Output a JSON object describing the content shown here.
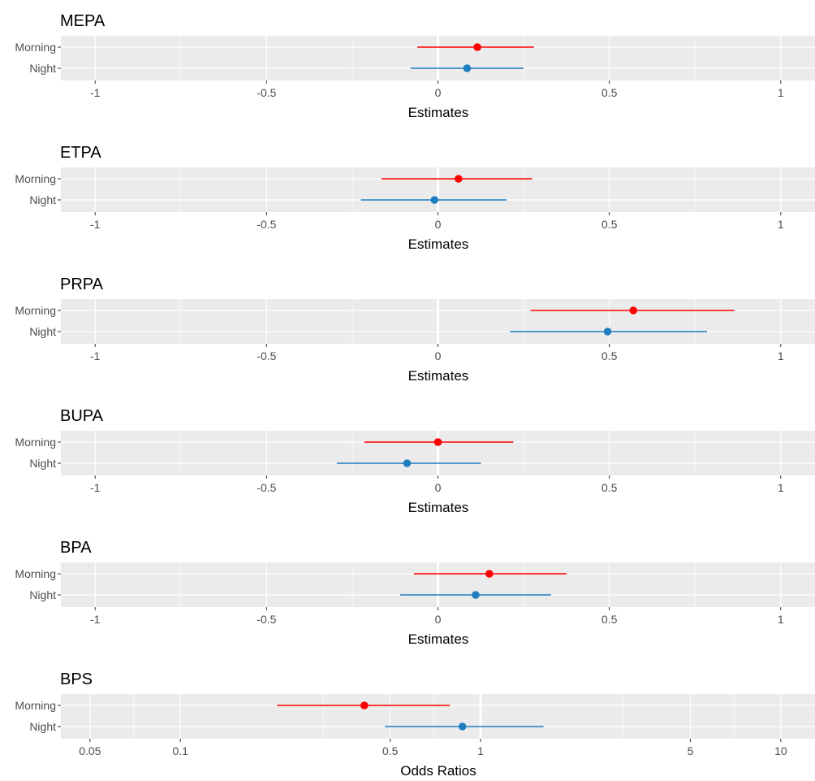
{
  "colors": {
    "morning": "#ff0000",
    "night": "#1f7ec0",
    "panel_bg": "#ebebeb",
    "grid": "#ffffff",
    "tick_text": "#4d4d4d",
    "text": "#000000"
  },
  "chart_data": [
    {
      "type": "forest",
      "title": "MEPA",
      "xlabel": "Estimates",
      "xscale": "linear",
      "xlim": [
        -1.1,
        1.1
      ],
      "xticks": [
        -1,
        -0.5,
        0,
        0.5,
        1
      ],
      "xtick_labels": [
        "-1",
        "-0.5",
        "0",
        "0.5",
        "1"
      ],
      "reference_line": 0,
      "categories": [
        "Morning",
        "Night"
      ],
      "series": [
        {
          "category": "Morning",
          "estimate": 0.115,
          "lower": -0.06,
          "upper": 0.28,
          "color": "#ff0000"
        },
        {
          "category": "Night",
          "estimate": 0.085,
          "lower": -0.08,
          "upper": 0.25,
          "color": "#1f7ec0"
        }
      ]
    },
    {
      "type": "forest",
      "title": "ETPA",
      "xlabel": "Estimates",
      "xscale": "linear",
      "xlim": [
        -1.1,
        1.1
      ],
      "xticks": [
        -1,
        -0.5,
        0,
        0.5,
        1
      ],
      "xtick_labels": [
        "-1",
        "-0.5",
        "0",
        "0.5",
        "1"
      ],
      "reference_line": 0,
      "categories": [
        "Morning",
        "Night"
      ],
      "series": [
        {
          "category": "Morning",
          "estimate": 0.06,
          "lower": -0.165,
          "upper": 0.275,
          "color": "#ff0000"
        },
        {
          "category": "Night",
          "estimate": -0.01,
          "lower": -0.225,
          "upper": 0.2,
          "color": "#1f7ec0"
        }
      ]
    },
    {
      "type": "forest",
      "title": "PRPA",
      "xlabel": "Estimates",
      "xscale": "linear",
      "xlim": [
        -1.1,
        1.1
      ],
      "xticks": [
        -1,
        -0.5,
        0,
        0.5,
        1
      ],
      "xtick_labels": [
        "-1",
        "-0.5",
        "0",
        "0.5",
        "1"
      ],
      "reference_line": 0,
      "categories": [
        "Morning",
        "Night"
      ],
      "series": [
        {
          "category": "Morning",
          "estimate": 0.57,
          "lower": 0.27,
          "upper": 0.865,
          "color": "#ff0000"
        },
        {
          "category": "Night",
          "estimate": 0.495,
          "lower": 0.21,
          "upper": 0.785,
          "color": "#1f7ec0"
        }
      ]
    },
    {
      "type": "forest",
      "title": "BUPA",
      "xlabel": "Estimates",
      "xscale": "linear",
      "xlim": [
        -1.1,
        1.1
      ],
      "xticks": [
        -1,
        -0.5,
        0,
        0.5,
        1
      ],
      "xtick_labels": [
        "-1",
        "-0.5",
        "0",
        "0.5",
        "1"
      ],
      "reference_line": 0,
      "categories": [
        "Morning",
        "Night"
      ],
      "series": [
        {
          "category": "Morning",
          "estimate": 0.0,
          "lower": -0.215,
          "upper": 0.22,
          "color": "#ff0000"
        },
        {
          "category": "Night",
          "estimate": -0.09,
          "lower": -0.295,
          "upper": 0.125,
          "color": "#1f7ec0"
        }
      ]
    },
    {
      "type": "forest",
      "title": "BPA",
      "xlabel": "Estimates",
      "xscale": "linear",
      "xlim": [
        -1.1,
        1.1
      ],
      "xticks": [
        -1,
        -0.5,
        0,
        0.5,
        1
      ],
      "xtick_labels": [
        "-1",
        "-0.5",
        "0",
        "0.5",
        "1"
      ],
      "reference_line": 0,
      "categories": [
        "Morning",
        "Night"
      ],
      "series": [
        {
          "category": "Morning",
          "estimate": 0.15,
          "lower": -0.07,
          "upper": 0.375,
          "color": "#ff0000"
        },
        {
          "category": "Night",
          "estimate": 0.11,
          "lower": -0.11,
          "upper": 0.33,
          "color": "#1f7ec0"
        }
      ]
    },
    {
      "type": "forest",
      "title": "BPS",
      "xlabel": "Odds Ratios",
      "xscale": "log",
      "xlim": [
        0.04,
        13
      ],
      "xticks": [
        0.05,
        0.1,
        0.5,
        1,
        5,
        10
      ],
      "xtick_labels": [
        "0.05",
        "0.1",
        "0.5",
        "1",
        "5",
        "10"
      ],
      "minor_gridlines": [
        0.07,
        0.3,
        0.7,
        3,
        7
      ],
      "reference_line": 1,
      "categories": [
        "Morning",
        "Night"
      ],
      "series": [
        {
          "category": "Morning",
          "estimate": 0.41,
          "lower": 0.21,
          "upper": 0.79,
          "color": "#ff0000"
        },
        {
          "category": "Night",
          "estimate": 0.87,
          "lower": 0.48,
          "upper": 1.62,
          "color": "#1f7ec0"
        }
      ]
    }
  ]
}
